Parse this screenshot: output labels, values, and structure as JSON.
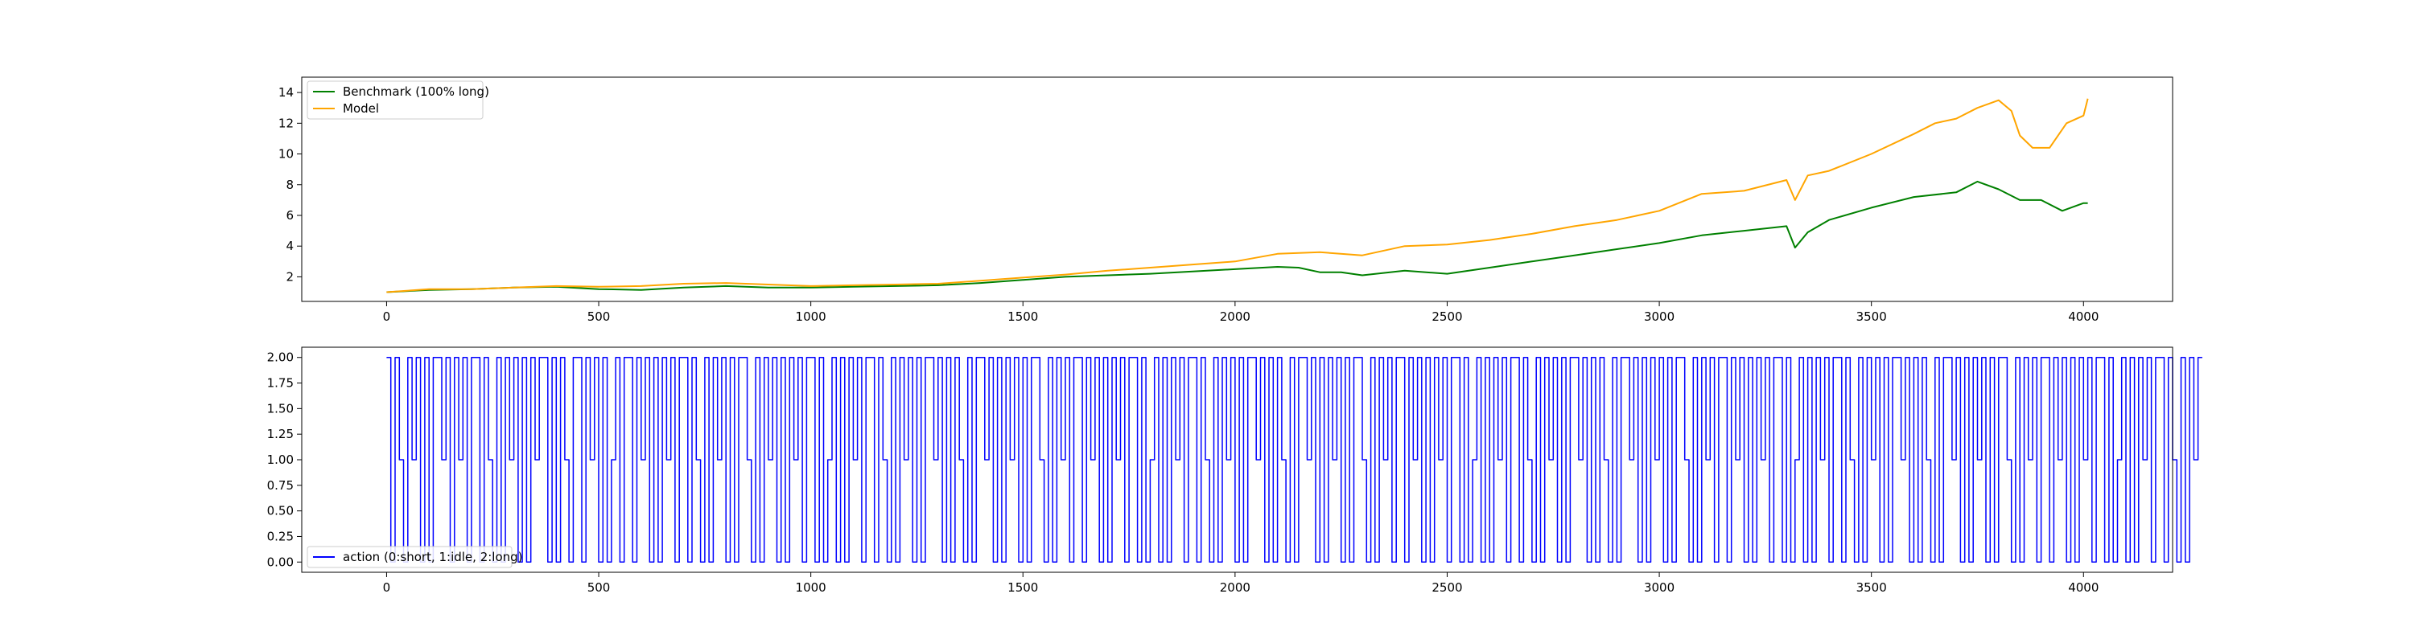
{
  "chart_data": [
    {
      "type": "line",
      "title": "",
      "xlabel": "",
      "ylabel": "",
      "xlim": [
        -200,
        4210
      ],
      "ylim": [
        0.4,
        15.0
      ],
      "xticks": [
        0,
        500,
        1000,
        1500,
        2000,
        2500,
        3000,
        3500,
        4000
      ],
      "yticks": [
        2,
        4,
        6,
        8,
        10,
        12,
        14
      ],
      "grid": false,
      "legend_position": "top-left",
      "series": [
        {
          "name": "Benchmark (100% long)",
          "color": "#008000",
          "points": [
            [
              0,
              1.0
            ],
            [
              100,
              1.15
            ],
            [
              200,
              1.2
            ],
            [
              300,
              1.3
            ],
            [
              400,
              1.35
            ],
            [
              500,
              1.2
            ],
            [
              600,
              1.15
            ],
            [
              700,
              1.3
            ],
            [
              800,
              1.4
            ],
            [
              900,
              1.3
            ],
            [
              1000,
              1.3
            ],
            [
              1100,
              1.35
            ],
            [
              1200,
              1.4
            ],
            [
              1300,
              1.45
            ],
            [
              1400,
              1.6
            ],
            [
              1500,
              1.8
            ],
            [
              1600,
              2.0
            ],
            [
              1700,
              2.1
            ],
            [
              1800,
              2.2
            ],
            [
              1900,
              2.35
            ],
            [
              2000,
              2.5
            ],
            [
              2100,
              2.65
            ],
            [
              2150,
              2.6
            ],
            [
              2200,
              2.3
            ],
            [
              2250,
              2.3
            ],
            [
              2300,
              2.1
            ],
            [
              2400,
              2.4
            ],
            [
              2500,
              2.2
            ],
            [
              2600,
              2.6
            ],
            [
              2700,
              3.0
            ],
            [
              2800,
              3.4
            ],
            [
              2900,
              3.8
            ],
            [
              3000,
              4.2
            ],
            [
              3100,
              4.7
            ],
            [
              3200,
              5.0
            ],
            [
              3300,
              5.3
            ],
            [
              3320,
              3.9
            ],
            [
              3350,
              4.9
            ],
            [
              3400,
              5.7
            ],
            [
              3500,
              6.5
            ],
            [
              3600,
              7.2
            ],
            [
              3700,
              7.5
            ],
            [
              3750,
              8.2
            ],
            [
              3800,
              7.7
            ],
            [
              3850,
              7.0
            ],
            [
              3900,
              7.0
            ],
            [
              3950,
              6.3
            ],
            [
              4000,
              6.8
            ],
            [
              4010,
              6.8
            ]
          ]
        },
        {
          "name": "Model",
          "color": "#ffa500",
          "points": [
            [
              0,
              1.0
            ],
            [
              100,
              1.2
            ],
            [
              200,
              1.2
            ],
            [
              300,
              1.3
            ],
            [
              400,
              1.4
            ],
            [
              500,
              1.35
            ],
            [
              600,
              1.4
            ],
            [
              700,
              1.55
            ],
            [
              800,
              1.6
            ],
            [
              900,
              1.5
            ],
            [
              1000,
              1.4
            ],
            [
              1100,
              1.45
            ],
            [
              1200,
              1.5
            ],
            [
              1300,
              1.55
            ],
            [
              1400,
              1.75
            ],
            [
              1500,
              1.95
            ],
            [
              1600,
              2.15
            ],
            [
              1700,
              2.4
            ],
            [
              1800,
              2.6
            ],
            [
              1900,
              2.8
            ],
            [
              2000,
              3.0
            ],
            [
              2100,
              3.5
            ],
            [
              2200,
              3.6
            ],
            [
              2300,
              3.4
            ],
            [
              2400,
              4.0
            ],
            [
              2500,
              4.1
            ],
            [
              2600,
              4.4
            ],
            [
              2700,
              4.8
            ],
            [
              2800,
              5.3
            ],
            [
              2900,
              5.7
            ],
            [
              3000,
              6.3
            ],
            [
              3100,
              7.4
            ],
            [
              3200,
              7.6
            ],
            [
              3300,
              8.3
            ],
            [
              3320,
              7.0
            ],
            [
              3350,
              8.6
            ],
            [
              3400,
              8.9
            ],
            [
              3500,
              10.0
            ],
            [
              3600,
              11.3
            ],
            [
              3650,
              12.0
            ],
            [
              3700,
              12.3
            ],
            [
              3750,
              13.0
            ],
            [
              3800,
              13.5
            ],
            [
              3830,
              12.8
            ],
            [
              3850,
              11.2
            ],
            [
              3880,
              10.4
            ],
            [
              3920,
              10.4
            ],
            [
              3960,
              12.0
            ],
            [
              4000,
              12.5
            ],
            [
              4010,
              13.6
            ]
          ]
        }
      ]
    },
    {
      "type": "line",
      "title": "",
      "xlabel": "",
      "ylabel": "",
      "xlim": [
        -200,
        4210
      ],
      "ylim": [
        -0.1,
        2.1
      ],
      "xticks": [
        0,
        500,
        1000,
        1500,
        2000,
        2500,
        3000,
        3500,
        4000
      ],
      "yticks": [
        0.0,
        0.25,
        0.5,
        0.75,
        1.0,
        1.25,
        1.5,
        1.75,
        2.0
      ],
      "ytick_labels": [
        "0.00",
        "0.25",
        "0.50",
        "0.75",
        "1.00",
        "1.25",
        "1.50",
        "1.75",
        "2.00"
      ],
      "grid": false,
      "legend_position": "bottom-left",
      "series": [
        {
          "name": "action (0:short, 1:idle, 2:long)",
          "color": "#0000ff",
          "x_start": 0,
          "x_step": 10,
          "values": [
            2,
            0,
            2,
            1,
            0,
            2,
            1,
            2,
            0,
            2,
            0,
            2,
            2,
            1,
            2,
            0,
            2,
            1,
            2,
            0,
            2,
            2,
            0,
            2,
            1,
            0,
            2,
            0,
            2,
            1,
            2,
            0,
            2,
            0,
            2,
            1,
            2,
            2,
            0,
            2,
            0,
            2,
            1,
            0,
            2,
            2,
            0,
            2,
            1,
            2,
            0,
            2,
            0,
            1,
            2,
            0,
            2,
            2,
            0,
            2,
            1,
            2,
            0,
            2,
            0,
            2,
            1,
            2,
            0,
            2,
            2,
            0,
            2,
            1,
            0,
            2,
            0,
            2,
            1,
            2,
            0,
            2,
            0,
            2,
            2,
            1,
            0,
            2,
            0,
            2,
            1,
            2,
            0,
            2,
            0,
            2,
            1,
            2,
            0,
            2,
            2,
            0,
            2,
            0,
            1,
            2,
            0,
            2,
            0,
            2,
            1,
            2,
            0,
            2,
            2,
            0,
            2,
            1,
            0,
            2,
            0,
            2,
            1,
            2,
            0,
            2,
            0,
            2,
            2,
            1,
            2,
            0,
            2,
            0,
            2,
            1,
            0,
            2,
            0,
            2,
            2,
            1,
            2,
            0,
            2,
            0,
            2,
            1,
            2,
            0,
            2,
            0,
            2,
            2,
            1,
            0,
            2,
            0,
            2,
            1,
            2,
            0,
            2,
            2,
            0,
            2,
            1,
            2,
            0,
            2,
            0,
            2,
            1,
            2,
            0,
            2,
            2,
            0,
            2,
            0,
            1,
            2,
            0,
            2,
            0,
            2,
            1,
            2,
            0,
            2,
            2,
            0,
            2,
            1,
            0,
            2,
            0,
            2,
            1,
            2,
            0,
            2,
            0,
            2,
            2,
            1,
            2,
            0,
            2,
            0,
            2,
            1,
            0,
            2,
            0,
            2,
            2,
            1,
            2,
            0,
            2,
            0,
            2,
            1,
            2,
            0,
            2,
            0,
            2,
            2,
            1,
            0,
            2,
            0,
            2,
            1,
            2,
            0,
            2,
            2,
            0,
            2,
            1,
            2,
            0,
            2,
            0,
            2,
            1,
            2,
            0,
            2,
            2,
            0,
            2,
            0,
            1,
            2,
            0,
            2,
            0,
            2,
            1,
            2,
            0,
            2,
            2,
            0,
            2,
            1,
            0,
            2,
            0,
            2,
            1,
            2,
            0,
            2,
            0,
            2,
            2,
            1,
            2,
            0,
            2,
            0,
            2,
            1,
            0,
            2,
            0,
            2,
            2,
            1,
            2,
            0,
            2,
            0,
            2,
            1,
            2,
            0,
            2,
            0,
            2,
            2,
            1,
            0,
            2,
            0,
            2,
            1,
            2,
            0,
            2,
            2,
            0,
            2,
            1,
            2,
            0,
            2,
            0,
            2,
            1,
            2,
            0,
            2,
            2,
            0,
            2,
            0,
            1,
            2,
            0,
            2,
            0,
            2,
            1,
            2,
            0,
            2,
            2,
            0,
            2,
            1,
            0,
            2,
            0,
            2,
            1,
            2,
            0,
            2,
            0,
            2,
            2,
            1,
            2,
            0,
            2,
            0,
            2,
            1,
            0,
            2,
            0,
            2,
            2,
            1,
            2,
            0,
            2,
            0,
            2,
            1,
            2,
            0,
            2,
            0,
            2,
            2,
            1,
            0,
            2,
            0,
            2,
            1,
            2,
            0,
            2,
            2,
            0,
            2,
            1,
            2,
            0,
            2,
            0,
            2,
            1,
            2,
            0,
            2,
            2,
            0,
            2,
            0,
            1,
            2,
            0,
            2,
            0,
            2,
            1,
            2,
            0,
            2,
            2,
            0,
            2,
            1,
            0,
            2,
            0,
            2,
            1,
            2
          ]
        }
      ]
    }
  ]
}
